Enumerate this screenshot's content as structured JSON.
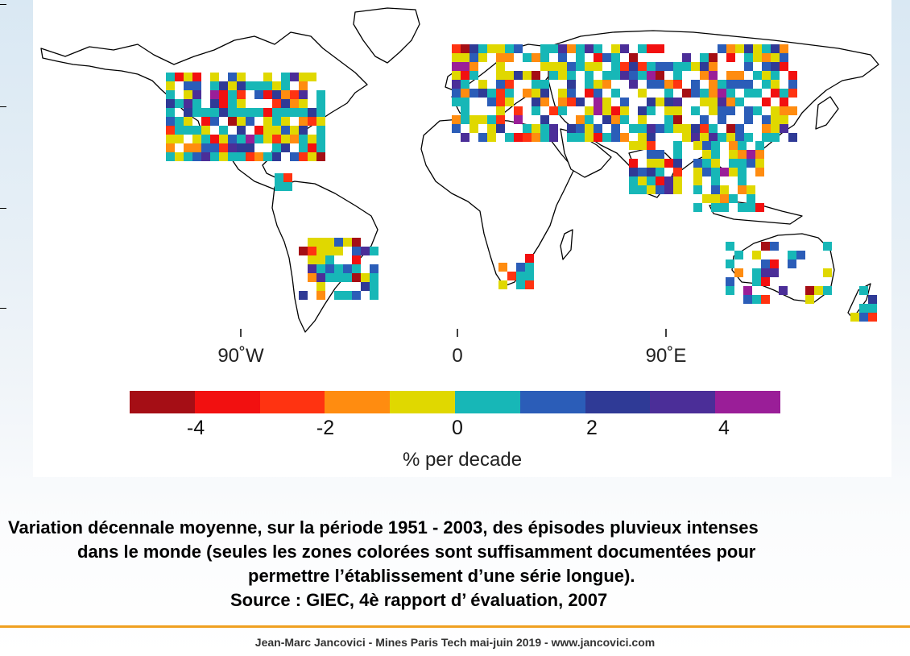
{
  "map": {
    "longitude_labels": [
      "90˚W",
      "0",
      "90˚E"
    ],
    "colorbar": {
      "colors": [
        "#a50e15",
        "#f21010",
        "#ff3311",
        "#ff8c10",
        "#e0d800",
        "#17b7b7",
        "#2b5db8",
        "#2f3a96",
        "#4b2e98",
        "#9a1e98"
      ],
      "tick_labels": [
        "-4",
        "-2",
        "0",
        "2",
        "4"
      ],
      "title": "% per decade"
    }
  },
  "caption": {
    "line1": "Variation décennale moyenne, sur la période 1951 - 2003,  des épisodes pluvieux intenses",
    "line2": "dans le monde (seules les zones colorées sont suffisamment documentées pour",
    "line3": "permettre l’établissement d’une série longue).",
    "line4": "Source : GIEC, 4è rapport d’ évaluation, 2007"
  },
  "footer": {
    "text": "Jean-Marc Jancovici - Mines Paris Tech mai-juin 2019 - www.jancovici.com"
  }
}
